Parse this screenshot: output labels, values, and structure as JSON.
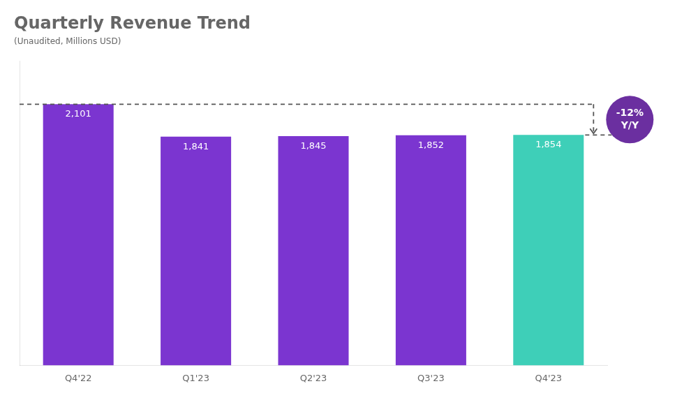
{
  "chart_data": {
    "type": "bar",
    "title": "Quarterly Revenue Trend",
    "subtitle": "(Unaudited, Millions USD)",
    "categories": [
      "Q4'22",
      "Q1'23",
      "Q2'23",
      "Q3'23",
      "Q4'23"
    ],
    "values": [
      2101,
      1841,
      1845,
      1852,
      1854
    ],
    "value_labels": [
      "2,101",
      "1,841",
      "1,845",
      "1,852",
      "1,854"
    ],
    "colors": [
      "#7B35D0",
      "#7B35D0",
      "#7B35D0",
      "#7B35D0",
      "#3ECFB8"
    ],
    "data_labels": true,
    "annotation": "-12%\nY/Y",
    "ylim": [
      0,
      2450
    ],
    "tick_labels": "x",
    "grid": false
  }
}
